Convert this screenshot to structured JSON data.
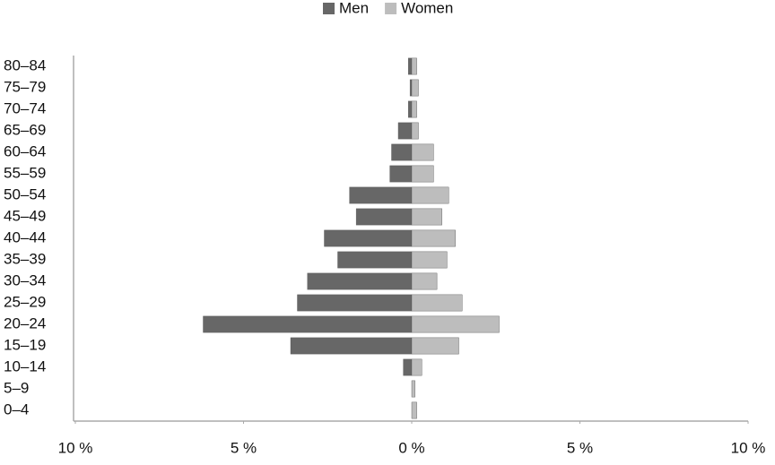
{
  "chart_data": {
    "type": "bar",
    "orientation": "horizontal",
    "legend": "top",
    "categories": [
      "0–4",
      "5–9",
      "10–14",
      "15–19",
      "20–24",
      "25–29",
      "30–34",
      "35–39",
      "40–44",
      "45–49",
      "50–54",
      "55–59",
      "60–64",
      "65–69",
      "70–74",
      "75–79",
      "80–84"
    ],
    "series": [
      {
        "name": "Men",
        "color": "#676767",
        "values": [
          0,
          0,
          -0.25,
          -3.6,
          -6.2,
          -3.4,
          -3.1,
          -2.2,
          -2.6,
          -1.65,
          -1.85,
          -0.65,
          -0.6,
          -0.4,
          -0.1,
          -0.05,
          -0.1
        ]
      },
      {
        "name": "Women",
        "color": "#bdbdbd",
        "values": [
          0.15,
          0.1,
          0.3,
          1.4,
          2.6,
          1.5,
          0.75,
          1.05,
          1.3,
          0.9,
          1.1,
          0.65,
          0.65,
          0.2,
          0.15,
          0.2,
          0.15
        ]
      }
    ],
    "xlim": [
      -10,
      10
    ],
    "xticks": [
      {
        "value": -10,
        "label": "10 %"
      },
      {
        "value": -5,
        "label": "5 %"
      },
      {
        "value": 0,
        "label": "0 %"
      },
      {
        "value": 5,
        "label": "5 %"
      },
      {
        "value": 10,
        "label": "10 %"
      }
    ]
  }
}
